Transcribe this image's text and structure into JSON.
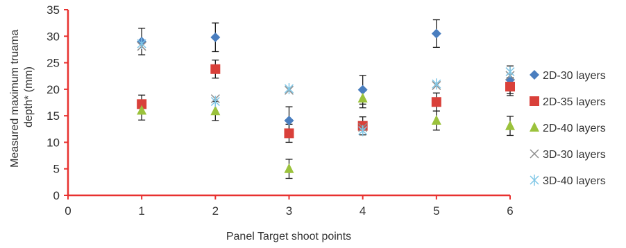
{
  "chart_data": {
    "type": "scatter",
    "title": "",
    "xlabel": "Panel Target shoot points",
    "ylabel_lines": [
      "Measured maximum truama",
      "depth* (mm)"
    ],
    "xlim": [
      0,
      6
    ],
    "ylim": [
      0,
      35
    ],
    "x_ticks": [
      "0",
      "1",
      "2",
      "3",
      "4",
      "5",
      "6"
    ],
    "y_ticks": [
      "0",
      "5",
      "10",
      "15",
      "20",
      "25",
      "30",
      "35"
    ],
    "axis_color": "#e8312f",
    "grid": false,
    "legend_position": "right",
    "series": [
      {
        "name": "2D-30 layers",
        "marker": "diamond",
        "color": "#4a7ebf",
        "points": [
          {
            "x": 1,
            "y": 29.0,
            "err": 2.5
          },
          {
            "x": 2,
            "y": 29.8,
            "err": 2.7
          },
          {
            "x": 3,
            "y": 14.1,
            "err": 2.6
          },
          {
            "x": 4,
            "y": 19.9,
            "err": 2.7
          },
          {
            "x": 5,
            "y": 30.5,
            "err": 2.6
          },
          {
            "x": 6,
            "y": 21.8,
            "err": 2.6
          }
        ]
      },
      {
        "name": "2D-35 layers",
        "marker": "square",
        "color": "#d9403a",
        "points": [
          {
            "x": 1,
            "y": 17.2,
            "err": 1.7
          },
          {
            "x": 2,
            "y": 23.8,
            "err": 1.7
          },
          {
            "x": 3,
            "y": 11.7,
            "err": 1.7
          },
          {
            "x": 4,
            "y": 13.1,
            "err": 1.7
          },
          {
            "x": 5,
            "y": 17.6,
            "err": 1.7
          },
          {
            "x": 6,
            "y": 20.5,
            "err": 1.7
          }
        ]
      },
      {
        "name": "2D-40 layers",
        "marker": "triangle",
        "color": "#9bc23c",
        "points": [
          {
            "x": 1,
            "y": 16.0,
            "err": 1.8
          },
          {
            "x": 2,
            "y": 15.9,
            "err": 1.8
          },
          {
            "x": 3,
            "y": 5.0,
            "err": 1.8
          },
          {
            "x": 4,
            "y": 18.3,
            "err": 1.8
          },
          {
            "x": 5,
            "y": 14.1,
            "err": 1.8
          },
          {
            "x": 6,
            "y": 13.1,
            "err": 1.8
          }
        ]
      },
      {
        "name": "3D-30 layers",
        "marker": "x",
        "color": "#8c8c8c",
        "points": [
          {
            "x": 1,
            "y": 28.1
          },
          {
            "x": 2,
            "y": 18.2
          },
          {
            "x": 3,
            "y": 19.8
          },
          {
            "x": 4,
            "y": 12.8
          },
          {
            "x": 5,
            "y": 20.7
          },
          {
            "x": 6,
            "y": 22.6
          }
        ]
      },
      {
        "name": "3D-40 layers",
        "marker": "asterisk",
        "color": "#7fc6e6",
        "points": [
          {
            "x": 1,
            "y": 28.6
          },
          {
            "x": 2,
            "y": 17.7
          },
          {
            "x": 3,
            "y": 20.1
          },
          {
            "x": 4,
            "y": 12.2
          },
          {
            "x": 5,
            "y": 21.0
          },
          {
            "x": 6,
            "y": 23.3
          }
        ]
      }
    ]
  }
}
